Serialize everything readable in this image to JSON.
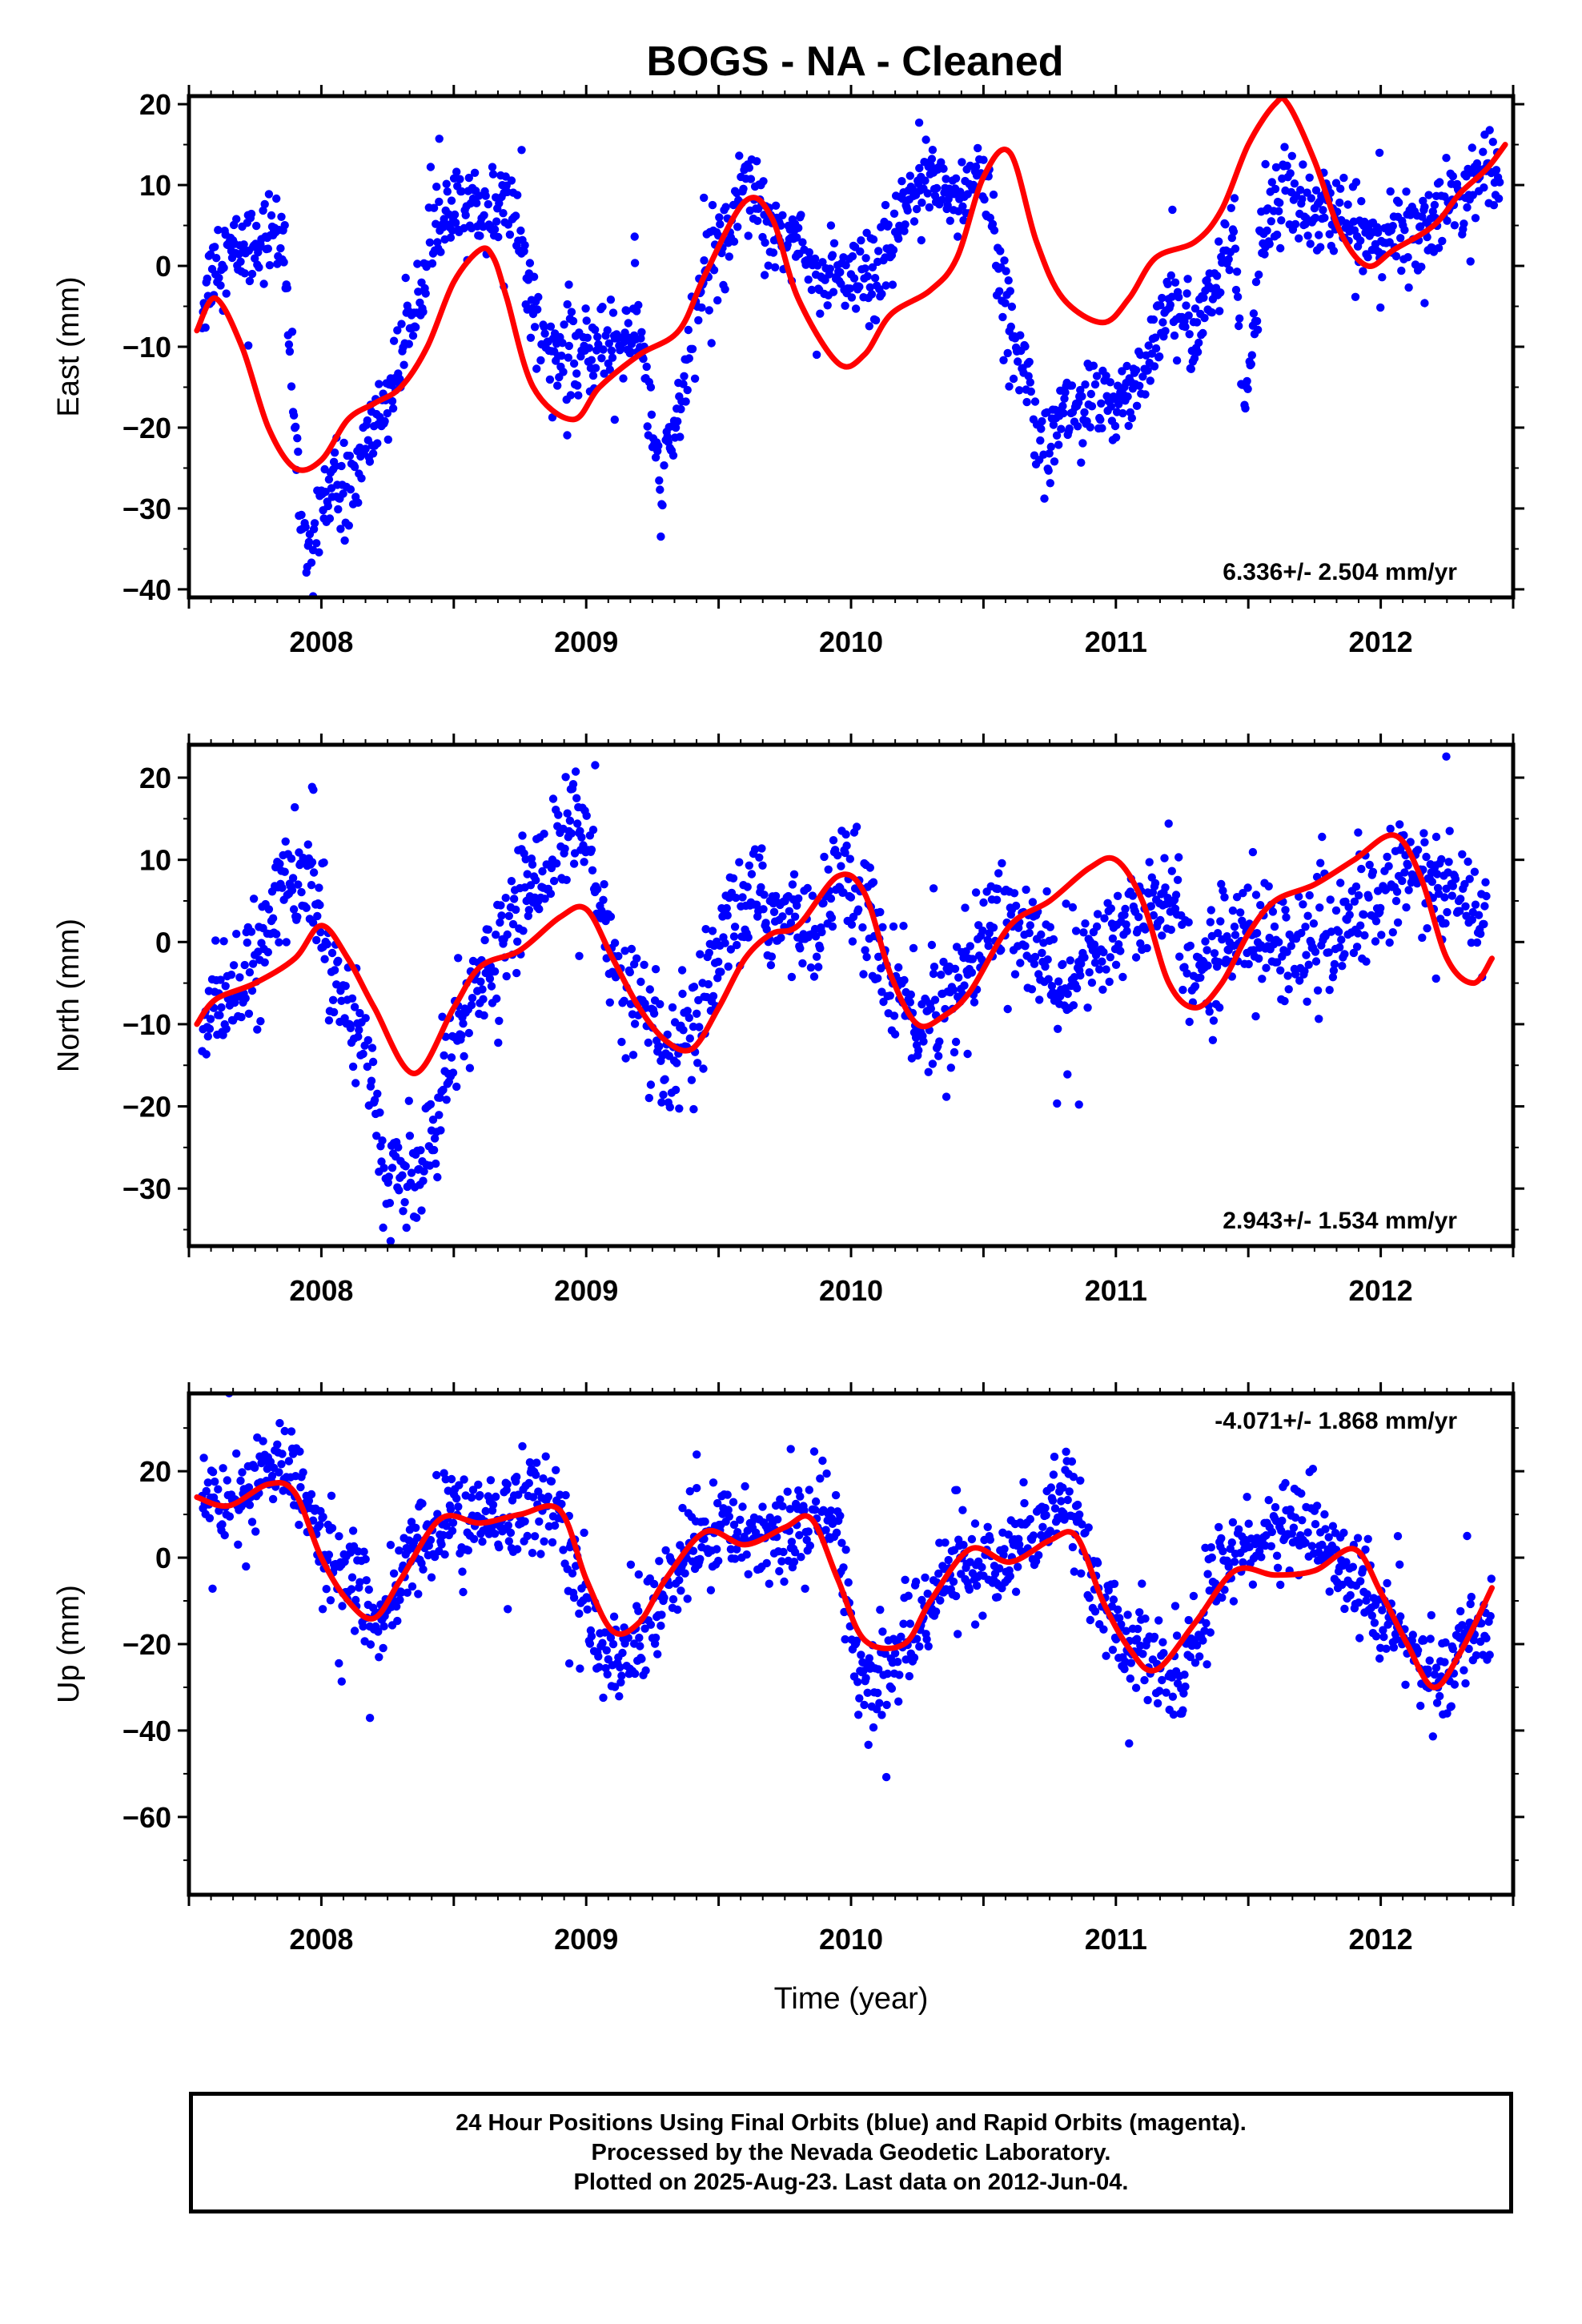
{
  "title": "BOGS  - NA - Cleaned",
  "colors": {
    "points": "#0000ff",
    "model": "#ff0000",
    "frame": "#000000"
  },
  "caption": {
    "lines": [
      "24 Hour Positions Using Final Orbits (blue) and Rapid Orbits (magenta).",
      "Processed by the Nevada Geodetic Laboratory.",
      "Plotted on 2025-Aug-23. Last data on 2012-Jun-04."
    ]
  },
  "chart_data": [
    {
      "type": "scatter",
      "ylabel": "East (mm)",
      "xlabel": "",
      "xlim": [
        2007.5,
        2012.5
      ],
      "ylim": [
        -41,
        21
      ],
      "yticks": [
        -40,
        -30,
        -20,
        -10,
        0,
        10,
        20
      ],
      "xticks": [
        2008,
        2009,
        2010,
        2011,
        2012
      ],
      "rate": "6.336+/- 2.504 mm/yr",
      "rate_position": "bottom-right",
      "points": {
        "name": "",
        "anchors": [
          [
            2007.55,
            -5
          ],
          [
            2007.6,
            1
          ],
          [
            2007.7,
            2
          ],
          [
            2007.8,
            4
          ],
          [
            2007.85,
            4
          ],
          [
            2007.88,
            -10
          ],
          [
            2007.92,
            -30
          ],
          [
            2007.95,
            -37
          ],
          [
            2008.0,
            -28
          ],
          [
            2008.1,
            -28
          ],
          [
            2008.2,
            -20
          ],
          [
            2008.3,
            -12
          ],
          [
            2008.38,
            0
          ],
          [
            2008.45,
            5
          ],
          [
            2008.55,
            7
          ],
          [
            2008.65,
            7
          ],
          [
            2008.72,
            8
          ],
          [
            2008.8,
            -5
          ],
          [
            2008.9,
            -12
          ],
          [
            2009.0,
            -11
          ],
          [
            2009.1,
            -9
          ],
          [
            2009.2,
            -8
          ],
          [
            2009.28,
            -28
          ],
          [
            2009.35,
            -18
          ],
          [
            2009.45,
            0
          ],
          [
            2009.55,
            5
          ],
          [
            2009.6,
            12
          ],
          [
            2009.7,
            5
          ],
          [
            2009.8,
            3
          ],
          [
            2009.9,
            -2
          ],
          [
            2010.0,
            -2
          ],
          [
            2010.1,
            -2
          ],
          [
            2010.15,
            2
          ],
          [
            2010.22,
            8
          ],
          [
            2010.3,
            12
          ],
          [
            2010.4,
            8
          ],
          [
            2010.5,
            12
          ],
          [
            2010.58,
            -5
          ],
          [
            2010.75,
            -22
          ],
          [
            2010.8,
            -18
          ],
          [
            2010.85,
            -17
          ],
          [
            2010.95,
            -18
          ],
          [
            2011.05,
            -15
          ],
          [
            2011.15,
            -10
          ],
          [
            2011.2,
            -5
          ],
          [
            2011.3,
            -8
          ],
          [
            2011.35,
            -5
          ],
          [
            2011.4,
            0
          ],
          [
            2011.45,
            5
          ],
          [
            2011.48,
            -20
          ],
          [
            2011.55,
            3
          ],
          [
            2011.6,
            8
          ],
          [
            2011.7,
            8
          ],
          [
            2011.8,
            7
          ],
          [
            2011.9,
            4
          ],
          [
            2012.0,
            3
          ],
          [
            2012.1,
            4
          ],
          [
            2012.2,
            6
          ],
          [
            2012.3,
            8
          ],
          [
            2012.35,
            11
          ],
          [
            2012.4,
            12
          ],
          [
            2012.45,
            14
          ]
        ],
        "spread": 2.6,
        "outlier_count": 22
      },
      "model": {
        "name": "",
        "x": [
          2007.53,
          2007.6,
          2007.7,
          2007.8,
          2007.9,
          2008.0,
          2008.1,
          2008.2,
          2008.3,
          2008.4,
          2008.5,
          2008.6,
          2008.65,
          2008.7,
          2008.8,
          2008.95,
          2009.05,
          2009.2,
          2009.35,
          2009.45,
          2009.6,
          2009.7,
          2009.8,
          2009.95,
          2010.05,
          2010.15,
          2010.3,
          2010.4,
          2010.5,
          2010.6,
          2010.7,
          2010.8,
          2010.95,
          2011.05,
          2011.15,
          2011.3,
          2011.4,
          2011.5,
          2011.6,
          2011.65,
          2011.75,
          2011.85,
          2011.95,
          2012.05,
          2012.2,
          2012.3,
          2012.4,
          2012.47
        ],
        "y": [
          -8,
          -4,
          -10,
          -20,
          -25,
          -24,
          -19,
          -17,
          -15,
          -10,
          -2,
          2,
          1,
          -4,
          -15,
          -19,
          -15,
          -11,
          -8,
          -1,
          8,
          6,
          -4,
          -12,
          -11,
          -6,
          -3,
          1,
          11,
          14,
          3,
          -4,
          -7,
          -4,
          1,
          3,
          7,
          15,
          20,
          20,
          13,
          4,
          0,
          2,
          5,
          9,
          12,
          15
        ]
      }
    },
    {
      "type": "scatter",
      "ylabel": "North (mm)",
      "xlabel": "",
      "xlim": [
        2007.5,
        2012.5
      ],
      "ylim": [
        -37,
        24
      ],
      "yticks": [
        -30,
        -20,
        -10,
        0,
        10,
        20
      ],
      "xticks": [
        2008,
        2009,
        2010,
        2011,
        2012
      ],
      "rate": "2.943+/- 1.534 mm/yr",
      "rate_position": "bottom-right",
      "points": {
        "name": "",
        "anchors": [
          [
            2007.55,
            -10
          ],
          [
            2007.65,
            -6
          ],
          [
            2007.75,
            -4
          ],
          [
            2007.85,
            8
          ],
          [
            2007.9,
            5
          ],
          [
            2007.95,
            8
          ],
          [
            2008.0,
            2
          ],
          [
            2008.05,
            -4
          ],
          [
            2008.15,
            -10
          ],
          [
            2008.2,
            -20
          ],
          [
            2008.25,
            -30
          ],
          [
            2008.3,
            -30
          ],
          [
            2008.38,
            -28
          ],
          [
            2008.45,
            -20
          ],
          [
            2008.55,
            -8
          ],
          [
            2008.65,
            -3
          ],
          [
            2008.75,
            5
          ],
          [
            2008.85,
            10
          ],
          [
            2008.95,
            15
          ],
          [
            2009.0,
            12
          ],
          [
            2009.1,
            -3
          ],
          [
            2009.2,
            -8
          ],
          [
            2009.3,
            -16
          ],
          [
            2009.4,
            -12
          ],
          [
            2009.5,
            -3
          ],
          [
            2009.55,
            4
          ],
          [
            2009.65,
            5
          ],
          [
            2009.75,
            2
          ],
          [
            2009.85,
            2
          ],
          [
            2009.95,
            8
          ],
          [
            2010.05,
            5
          ],
          [
            2010.15,
            -5
          ],
          [
            2010.25,
            -10
          ],
          [
            2010.35,
            -8
          ],
          [
            2010.45,
            -3
          ],
          [
            2010.55,
            5
          ],
          [
            2010.8,
            -5
          ],
          [
            2010.9,
            -2
          ],
          [
            2011.0,
            0
          ],
          [
            2011.1,
            4
          ],
          [
            2011.2,
            6
          ],
          [
            2011.3,
            -5
          ],
          [
            2011.4,
            0
          ],
          [
            2011.5,
            2
          ],
          [
            2011.6,
            0
          ],
          [
            2011.7,
            -1
          ],
          [
            2011.8,
            0
          ],
          [
            2011.9,
            3
          ],
          [
            2012.0,
            6
          ],
          [
            2012.1,
            9
          ],
          [
            2012.2,
            7
          ],
          [
            2012.3,
            5
          ],
          [
            2012.35,
            3
          ],
          [
            2012.4,
            2
          ]
        ],
        "spread": 3.4,
        "outlier_count": 18
      },
      "model": {
        "name": "",
        "x": [
          2007.53,
          2007.6,
          2007.75,
          2007.9,
          2008.0,
          2008.1,
          2008.2,
          2008.35,
          2008.5,
          2008.6,
          2008.75,
          2008.9,
          2009.0,
          2009.1,
          2009.2,
          2009.3,
          2009.4,
          2009.5,
          2009.6,
          2009.7,
          2009.8,
          2009.95,
          2010.05,
          2010.15,
          2010.25,
          2010.35,
          2010.45,
          2010.6,
          2010.75,
          2010.9,
          2011.0,
          2011.1,
          2011.2,
          2011.3,
          2011.4,
          2011.5,
          2011.6,
          2011.75,
          2011.9,
          2012.05,
          2012.15,
          2012.25,
          2012.35,
          2012.42
        ],
        "y": [
          -10,
          -7,
          -5,
          -2,
          2,
          -2,
          -8,
          -16,
          -8,
          -3,
          -1,
          3,
          4,
          -2,
          -8,
          -12,
          -13,
          -8,
          -2,
          1,
          2,
          8,
          6,
          -4,
          -10,
          -9,
          -6,
          2,
          5,
          9,
          10,
          5,
          -5,
          -8,
          -5,
          1,
          5,
          7,
          10,
          13,
          8,
          -2,
          -5,
          -2
        ]
      }
    },
    {
      "type": "scatter",
      "ylabel": "Up (mm)",
      "xlabel": "Time (year)",
      "xlim": [
        2007.5,
        2012.5
      ],
      "ylim": [
        -78,
        38
      ],
      "yticks": [
        -60,
        -40,
        -20,
        0,
        20
      ],
      "xticks": [
        2008,
        2009,
        2010,
        2011,
        2012
      ],
      "rate": "-4.071+/- 1.868 mm/yr",
      "rate_position": "top-right",
      "points": {
        "name": "",
        "anchors": [
          [
            2007.55,
            16
          ],
          [
            2007.65,
            13
          ],
          [
            2007.75,
            18
          ],
          [
            2007.85,
            22
          ],
          [
            2007.9,
            20
          ],
          [
            2007.95,
            10
          ],
          [
            2008.05,
            0
          ],
          [
            2008.15,
            -10
          ],
          [
            2008.22,
            -15
          ],
          [
            2008.3,
            -5
          ],
          [
            2008.4,
            5
          ],
          [
            2008.5,
            10
          ],
          [
            2008.6,
            7
          ],
          [
            2008.7,
            10
          ],
          [
            2008.8,
            15
          ],
          [
            2008.9,
            12
          ],
          [
            2008.98,
            -10
          ],
          [
            2009.05,
            -20
          ],
          [
            2009.15,
            -25
          ],
          [
            2009.2,
            -18
          ],
          [
            2009.3,
            -8
          ],
          [
            2009.4,
            2
          ],
          [
            2009.5,
            7
          ],
          [
            2009.6,
            5
          ],
          [
            2009.7,
            6
          ],
          [
            2009.8,
            8
          ],
          [
            2009.9,
            10
          ],
          [
            2009.95,
            5
          ],
          [
            2010.0,
            -15
          ],
          [
            2010.05,
            -30
          ],
          [
            2010.15,
            -25
          ],
          [
            2010.25,
            -15
          ],
          [
            2010.35,
            -5
          ],
          [
            2010.45,
            0
          ],
          [
            2010.55,
            -5
          ],
          [
            2010.65,
            5
          ],
          [
            2010.8,
            15
          ],
          [
            2010.85,
            15
          ],
          [
            2010.9,
            0
          ],
          [
            2010.95,
            -10
          ],
          [
            2011.05,
            -20
          ],
          [
            2011.15,
            -25
          ],
          [
            2011.25,
            -30
          ],
          [
            2011.35,
            -8
          ],
          [
            2011.45,
            2
          ],
          [
            2011.55,
            5
          ],
          [
            2011.65,
            8
          ],
          [
            2011.75,
            5
          ],
          [
            2011.85,
            0
          ],
          [
            2011.95,
            -10
          ],
          [
            2012.05,
            -15
          ],
          [
            2012.15,
            -25
          ],
          [
            2012.25,
            -30
          ],
          [
            2012.35,
            -15
          ],
          [
            2012.42,
            -10
          ]
        ],
        "spread": 5.5,
        "outlier_count": 20
      },
      "model": {
        "name": "",
        "x": [
          2007.53,
          2007.65,
          2007.8,
          2007.9,
          2008.0,
          2008.1,
          2008.2,
          2008.3,
          2008.45,
          2008.6,
          2008.75,
          2008.9,
          2009.0,
          2009.1,
          2009.2,
          2009.3,
          2009.45,
          2009.6,
          2009.75,
          2009.85,
          2009.95,
          2010.05,
          2010.2,
          2010.3,
          2010.45,
          2010.6,
          2010.75,
          2010.85,
          2010.95,
          2011.05,
          2011.15,
          2011.3,
          2011.45,
          2011.6,
          2011.75,
          2011.9,
          2012.0,
          2012.1,
          2012.2,
          2012.3,
          2012.42
        ],
        "y": [
          14,
          12,
          17,
          15,
          0,
          -10,
          -14,
          -5,
          9,
          8,
          10,
          11,
          -5,
          -17,
          -15,
          -5,
          6,
          3,
          7,
          9,
          -5,
          -19,
          -20,
          -10,
          2,
          -1,
          4,
          5,
          -10,
          -21,
          -26,
          -15,
          -3,
          -4,
          -3,
          2,
          -8,
          -20,
          -30,
          -22,
          -7
        ]
      }
    }
  ]
}
